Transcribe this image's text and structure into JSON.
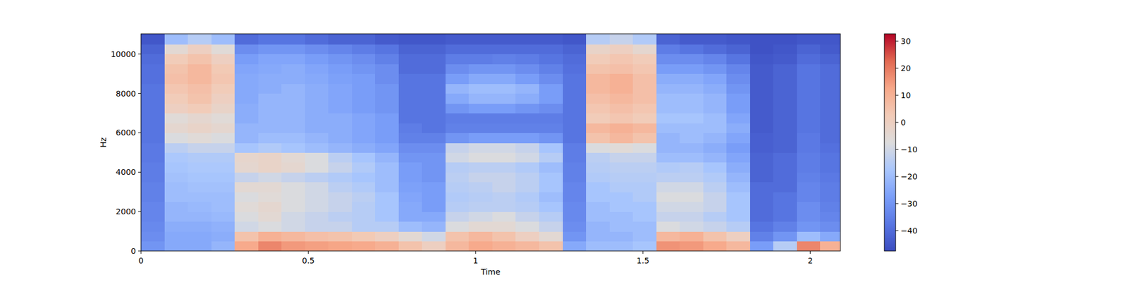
{
  "chart_data": {
    "type": "heatmap",
    "x_label": "Time",
    "y_label": "Hz",
    "xlim": [
      0,
      2.09
    ],
    "ylim": [
      0,
      11025
    ],
    "xticks": [
      0,
      0.5,
      1,
      1.5,
      2
    ],
    "yticks": [
      0,
      2000,
      4000,
      6000,
      8000,
      10000
    ],
    "x": [
      0,
      0.07,
      0.14,
      0.21,
      0.28,
      0.35,
      0.42,
      0.49,
      0.56,
      0.63,
      0.7,
      0.77,
      0.84,
      0.91,
      0.98,
      1.05,
      1.12,
      1.19,
      1.26,
      1.33,
      1.4,
      1.47,
      1.54,
      1.61,
      1.68,
      1.75,
      1.82,
      1.89,
      1.96,
      2.03,
      2.1
    ],
    "y": [
      0,
      500,
      1000,
      1500,
      2000,
      2500,
      3000,
      3500,
      4000,
      4500,
      5000,
      5500,
      6000,
      6500,
      7000,
      7500,
      8000,
      8500,
      9000,
      9500,
      10000,
      10500,
      11025
    ],
    "z": [
      [
        -30,
        -25,
        -25,
        -22,
        12,
        18,
        15,
        14,
        13,
        12,
        10,
        5,
        0,
        8,
        12,
        10,
        8,
        5,
        -25,
        -20,
        -20,
        -18,
        16,
        15,
        12,
        8,
        -28,
        -15,
        18,
        10
      ],
      [
        -32,
        -25,
        -25,
        -24,
        5,
        10,
        8,
        6,
        5,
        3,
        0,
        -5,
        -10,
        5,
        8,
        5,
        0,
        -5,
        -30,
        -22,
        -22,
        -20,
        8,
        10,
        5,
        0,
        -35,
        -30,
        -20,
        -25
      ],
      [
        -33,
        -24,
        -24,
        -23,
        -10,
        -8,
        -10,
        -12,
        -12,
        -15,
        -15,
        -20,
        -22,
        -8,
        -5,
        -5,
        -8,
        -12,
        -32,
        -22,
        -20,
        -20,
        -8,
        -10,
        -12,
        -15,
        -38,
        -35,
        -30,
        -32
      ],
      [
        -34,
        -22,
        -22,
        -21,
        -8,
        -5,
        -10,
        -12,
        -14,
        -15,
        -18,
        -25,
        -25,
        -12,
        -10,
        -8,
        -12,
        -15,
        -33,
        -20,
        -20,
        -18,
        -12,
        -12,
        -15,
        -18,
        -40,
        -38,
        -32,
        -34
      ],
      [
        -34,
        -22,
        -21,
        -20,
        -6,
        -4,
        -8,
        -10,
        -12,
        -15,
        -18,
        -25,
        -28,
        -15,
        -14,
        -14,
        -15,
        -18,
        -33,
        -20,
        -18,
        -18,
        -10,
        -10,
        -12,
        -18,
        -40,
        -38,
        -32,
        -35
      ],
      [
        -35,
        -20,
        -20,
        -20,
        -8,
        -6,
        -8,
        -10,
        -12,
        -14,
        -18,
        -26,
        -28,
        -16,
        -15,
        -14,
        -16,
        -20,
        -34,
        -18,
        -18,
        -16,
        -8,
        -8,
        -12,
        -18,
        -40,
        -38,
        -34,
        -36
      ],
      [
        -35,
        -20,
        -19,
        -19,
        -5,
        -5,
        -8,
        -10,
        -14,
        -16,
        -20,
        -27,
        -28,
        -15,
        -14,
        -12,
        -14,
        -18,
        -34,
        -18,
        -16,
        -16,
        -10,
        -10,
        -14,
        -20,
        -40,
        -40,
        -34,
        -36
      ],
      [
        -36,
        -19,
        -18,
        -18,
        -12,
        -10,
        -12,
        -14,
        -16,
        -18,
        -20,
        -28,
        -30,
        -14,
        -12,
        -12,
        -14,
        -18,
        -35,
        -16,
        -15,
        -15,
        -14,
        -14,
        -16,
        -22,
        -42,
        -40,
        -35,
        -37
      ],
      [
        -36,
        -18,
        -17,
        -17,
        -4,
        -2,
        -4,
        -8,
        -12,
        -16,
        -20,
        -28,
        -30,
        -15,
        -14,
        -14,
        -16,
        -20,
        -35,
        -15,
        -14,
        -14,
        -16,
        -15,
        -18,
        -24,
        -42,
        -40,
        -36,
        -38
      ],
      [
        -37,
        -17,
        -16,
        -16,
        -3,
        -2,
        -5,
        -8,
        -14,
        -18,
        -22,
        -30,
        -30,
        -10,
        -8,
        -8,
        -10,
        -15,
        -36,
        -14,
        -12,
        -12,
        -20,
        -20,
        -22,
        -26,
        -42,
        -40,
        -36,
        -38
      ],
      [
        -37,
        -14,
        -12,
        -12,
        -18,
        -16,
        -18,
        -20,
        -22,
        -24,
        -26,
        -32,
        -32,
        -12,
        -10,
        -10,
        -12,
        -18,
        -36,
        -8,
        -6,
        -8,
        -22,
        -22,
        -24,
        -28,
        -43,
        -42,
        -37,
        -39
      ],
      [
        -38,
        -8,
        -6,
        -8,
        -22,
        -20,
        -20,
        -22,
        -24,
        -26,
        -28,
        -35,
        -35,
        -30,
        -28,
        -28,
        -28,
        -30,
        -38,
        5,
        8,
        5,
        -22,
        -20,
        -22,
        -26,
        -43,
        -42,
        -37,
        -40
      ],
      [
        -38,
        -4,
        -2,
        -4,
        -22,
        -22,
        -22,
        -24,
        -24,
        -26,
        -28,
        -36,
        -38,
        -35,
        -35,
        -35,
        -35,
        -35,
        -38,
        8,
        10,
        8,
        -20,
        -20,
        -20,
        -24,
        -44,
        -42,
        -38,
        -40
      ],
      [
        -38,
        -6,
        -4,
        -6,
        -24,
        -22,
        -22,
        -24,
        -24,
        -26,
        -28,
        -38,
        -38,
        -36,
        -36,
        -36,
        -36,
        -36,
        -38,
        2,
        4,
        2,
        -18,
        -18,
        -20,
        -26,
        -44,
        -42,
        -38,
        -40
      ],
      [
        -38,
        0,
        2,
        -2,
        -24,
        -22,
        -22,
        -24,
        -26,
        -28,
        -30,
        -38,
        -38,
        -30,
        -28,
        -28,
        -30,
        -32,
        -38,
        4,
        6,
        4,
        -20,
        -20,
        -22,
        -28,
        -44,
        -42,
        -38,
        -40
      ],
      [
        -38,
        2,
        5,
        0,
        -25,
        -22,
        -22,
        -24,
        -26,
        -28,
        -30,
        -38,
        -38,
        -25,
        -22,
        -22,
        -24,
        -28,
        -38,
        6,
        8,
        6,
        -20,
        -20,
        -22,
        -28,
        -44,
        -42,
        -38,
        -40
      ],
      [
        -38,
        4,
        6,
        2,
        -25,
        -24,
        -22,
        -24,
        -26,
        -28,
        -30,
        -38,
        -38,
        -22,
        -20,
        -20,
        -22,
        -28,
        -38,
        8,
        10,
        6,
        -22,
        -22,
        -24,
        -30,
        -44,
        -42,
        -38,
        -40
      ],
      [
        -39,
        6,
        8,
        4,
        -25,
        -24,
        -24,
        -25,
        -27,
        -28,
        -32,
        -38,
        -38,
        -28,
        -25,
        -25,
        -28,
        -32,
        -38,
        8,
        10,
        6,
        -24,
        -24,
        -26,
        -32,
        -44,
        -42,
        -38,
        -40
      ],
      [
        -39,
        5,
        8,
        3,
        -26,
        -25,
        -24,
        -26,
        -28,
        -30,
        -32,
        -40,
        -40,
        -32,
        -30,
        -30,
        -32,
        -35,
        -39,
        5,
        6,
        4,
        -28,
        -28,
        -30,
        -34,
        -44,
        -42,
        -38,
        -40
      ],
      [
        -40,
        2,
        5,
        0,
        -28,
        -26,
        -26,
        -28,
        -30,
        -32,
        -35,
        -40,
        -40,
        -36,
        -36,
        -35,
        -36,
        -38,
        -40,
        2,
        4,
        2,
        -32,
        -32,
        -34,
        -38,
        -45,
        -44,
        -40,
        -42
      ],
      [
        -42,
        -5,
        0,
        -6,
        -32,
        -30,
        -30,
        -32,
        -34,
        -36,
        -38,
        -42,
        -42,
        -40,
        -40,
        -40,
        -40,
        -40,
        -42,
        -2,
        0,
        -4,
        -36,
        -38,
        -40,
        -42,
        -46,
        -45,
        -42,
        -44
      ],
      [
        -45,
        -20,
        -15,
        -20,
        -40,
        -38,
        -38,
        -40,
        -42,
        -42,
        -44,
        -45,
        -45,
        -44,
        -44,
        -44,
        -44,
        -44,
        -45,
        -15,
        -12,
        -16,
        -42,
        -44,
        -44,
        -45,
        -46,
        -46,
        -45,
        -45
      ]
    ],
    "colorbar": {
      "range": [
        -47.5,
        32.7
      ],
      "ticks": [
        {
          "value": -40,
          "label": "−40"
        },
        {
          "value": -30,
          "label": "−30"
        },
        {
          "value": -20,
          "label": "−20"
        },
        {
          "value": -10,
          "label": "−10"
        },
        0,
        10,
        20,
        30
      ]
    }
  }
}
